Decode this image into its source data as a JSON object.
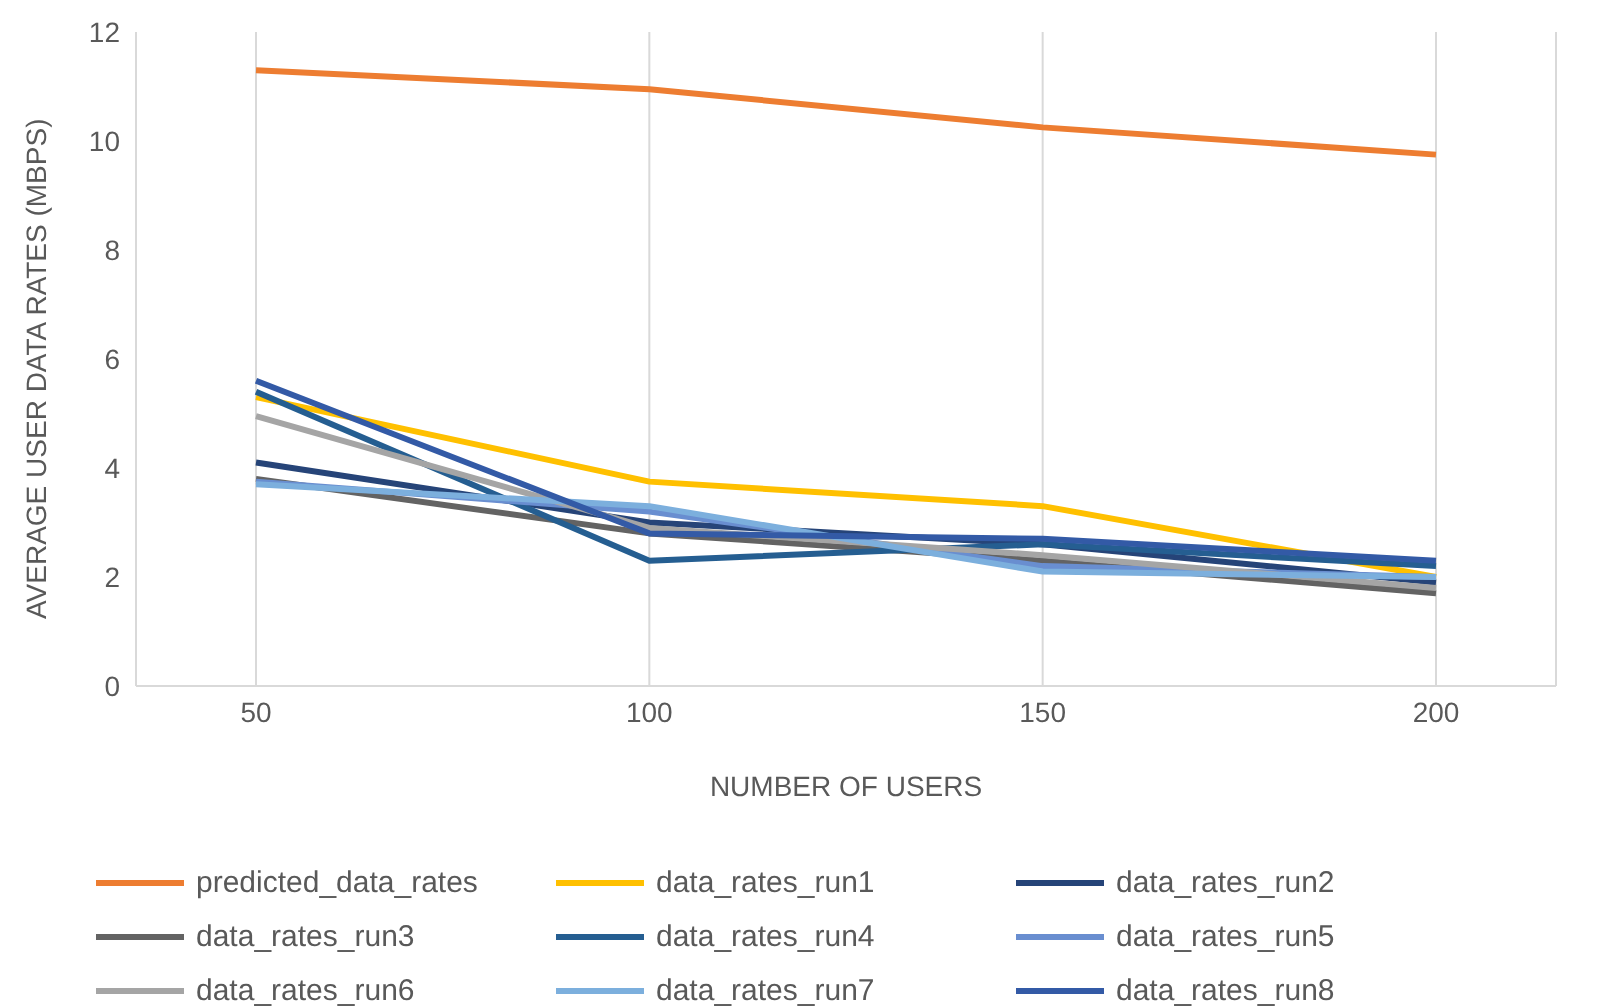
{
  "chart_data": {
    "type": "line",
    "xlabel": "NUMBER OF USERS",
    "ylabel": "AVERAGE USER DATA RATES (MBPS)",
    "categories": [
      "50",
      "100",
      "150",
      "200"
    ],
    "ylim": [
      0,
      12
    ],
    "yticks": [
      0,
      2,
      4,
      6,
      8,
      10,
      12
    ],
    "grid": "x",
    "legend": "bottom",
    "marker": "none",
    "series": [
      {
        "name": "predicted_data_rates",
        "color": "#ed7d31",
        "values": [
          11.3,
          10.95,
          10.25,
          9.75
        ]
      },
      {
        "name": "data_rates_run1",
        "color": "#ffc000",
        "values": [
          5.3,
          3.75,
          3.3,
          2.0
        ]
      },
      {
        "name": "data_rates_run2",
        "color": "#264478",
        "values": [
          4.1,
          3.0,
          2.6,
          1.9
        ]
      },
      {
        "name": "data_rates_run3",
        "color": "#636363",
        "values": [
          3.8,
          2.8,
          2.3,
          1.7
        ]
      },
      {
        "name": "data_rates_run4",
        "color": "#255e91",
        "values": [
          5.4,
          2.3,
          2.6,
          2.2
        ]
      },
      {
        "name": "data_rates_run5",
        "color": "#698ed0",
        "values": [
          3.75,
          3.2,
          2.2,
          2.0
        ]
      },
      {
        "name": "data_rates_run6",
        "color": "#a5a5a5",
        "values": [
          4.95,
          2.9,
          2.4,
          1.8
        ]
      },
      {
        "name": "data_rates_run7",
        "color": "#7cafdd",
        "values": [
          3.7,
          3.3,
          2.1,
          2.0
        ]
      },
      {
        "name": "data_rates_run8",
        "color": "#335aa6",
        "values": [
          5.6,
          2.8,
          2.7,
          2.3
        ]
      }
    ]
  }
}
